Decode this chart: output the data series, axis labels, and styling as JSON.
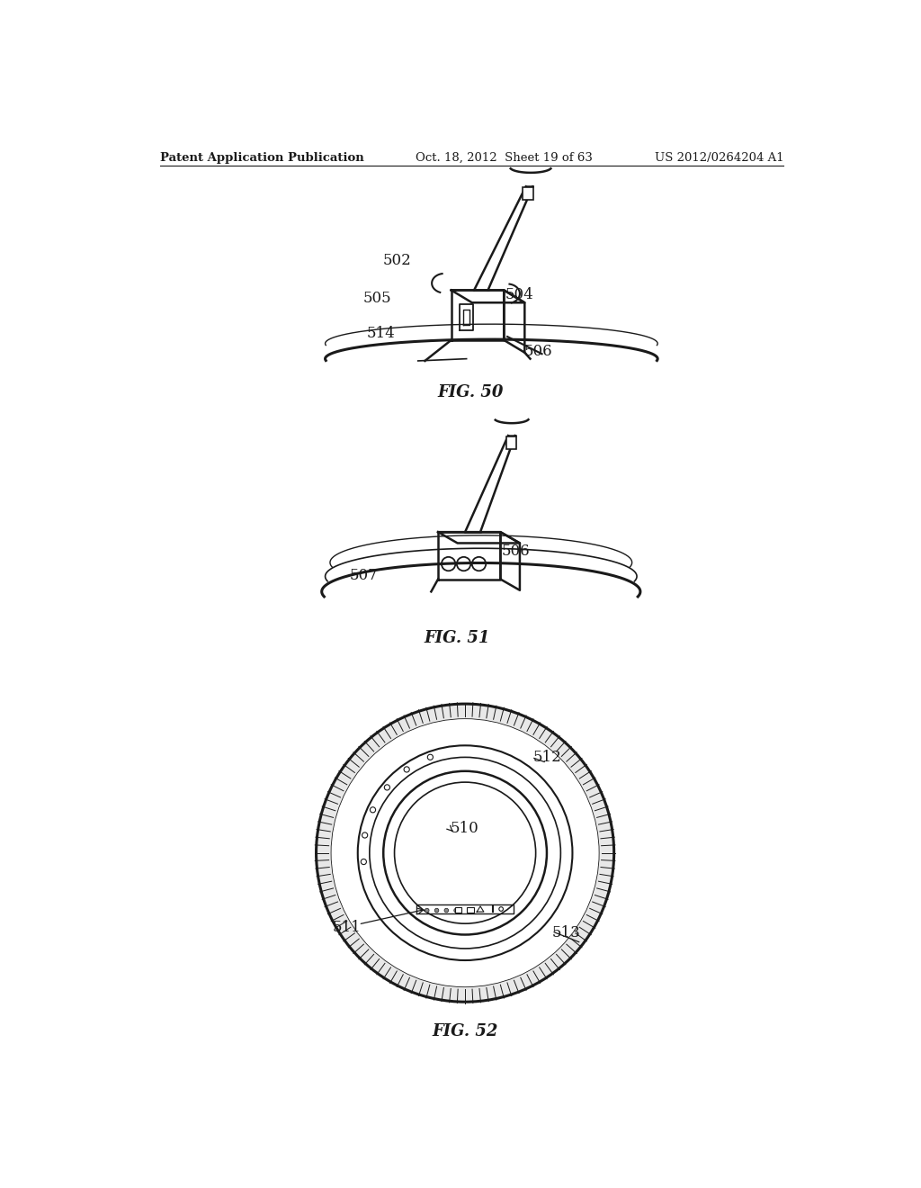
{
  "header_left": "Patent Application Publication",
  "header_center": "Oct. 18, 2012  Sheet 19 of 63",
  "header_right": "US 2012/0264204 A1",
  "fig50_label": "FIG. 50",
  "fig51_label": "FIG. 51",
  "fig52_label": "FIG. 52",
  "bg_color": "#ffffff",
  "line_color": "#1a1a1a"
}
